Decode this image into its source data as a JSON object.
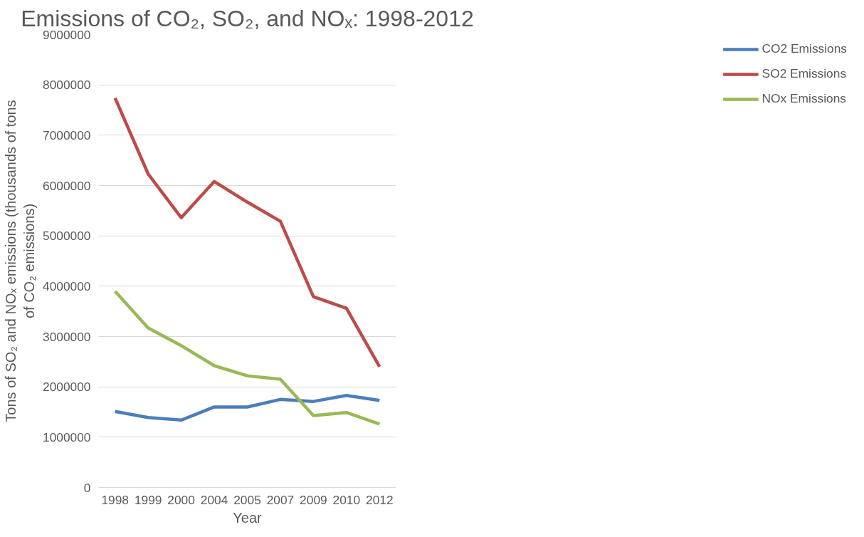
{
  "chart_data": {
    "type": "line",
    "title": "Emissions of CO₂, SO₂, and NOₓ: 1998-2012",
    "xlabel": "Year",
    "ylabel": "Tons of SO₂ and NOₓ emissions (thousands of tons of CO₂ emissions)",
    "categories": [
      "1998",
      "1999",
      "2000",
      "2004",
      "2005",
      "2007",
      "2009",
      "2010",
      "2012"
    ],
    "series": [
      {
        "name": "CO2 Emissions",
        "color": "#4a7ebb",
        "values": [
          1510000,
          1390000,
          1340000,
          1600000,
          1600000,
          1750000,
          1710000,
          1830000,
          1730000
        ]
      },
      {
        "name": "SO2 Emissions",
        "color": "#be4b48",
        "values": [
          7740000,
          6230000,
          5360000,
          6080000,
          5670000,
          5290000,
          3790000,
          3560000,
          2400000
        ]
      },
      {
        "name": "NOx Emissions",
        "color": "#98b954",
        "values": [
          3900000,
          3170000,
          2820000,
          2420000,
          2220000,
          2150000,
          1430000,
          1490000,
          1260000
        ]
      }
    ],
    "ylim": [
      0,
      9000000
    ],
    "yticks": [
      0,
      1000000,
      2000000,
      3000000,
      4000000,
      5000000,
      6000000,
      7000000,
      8000000,
      9000000
    ],
    "grid": "y",
    "legend": "right",
    "marker": "none",
    "line_style": "solid"
  }
}
